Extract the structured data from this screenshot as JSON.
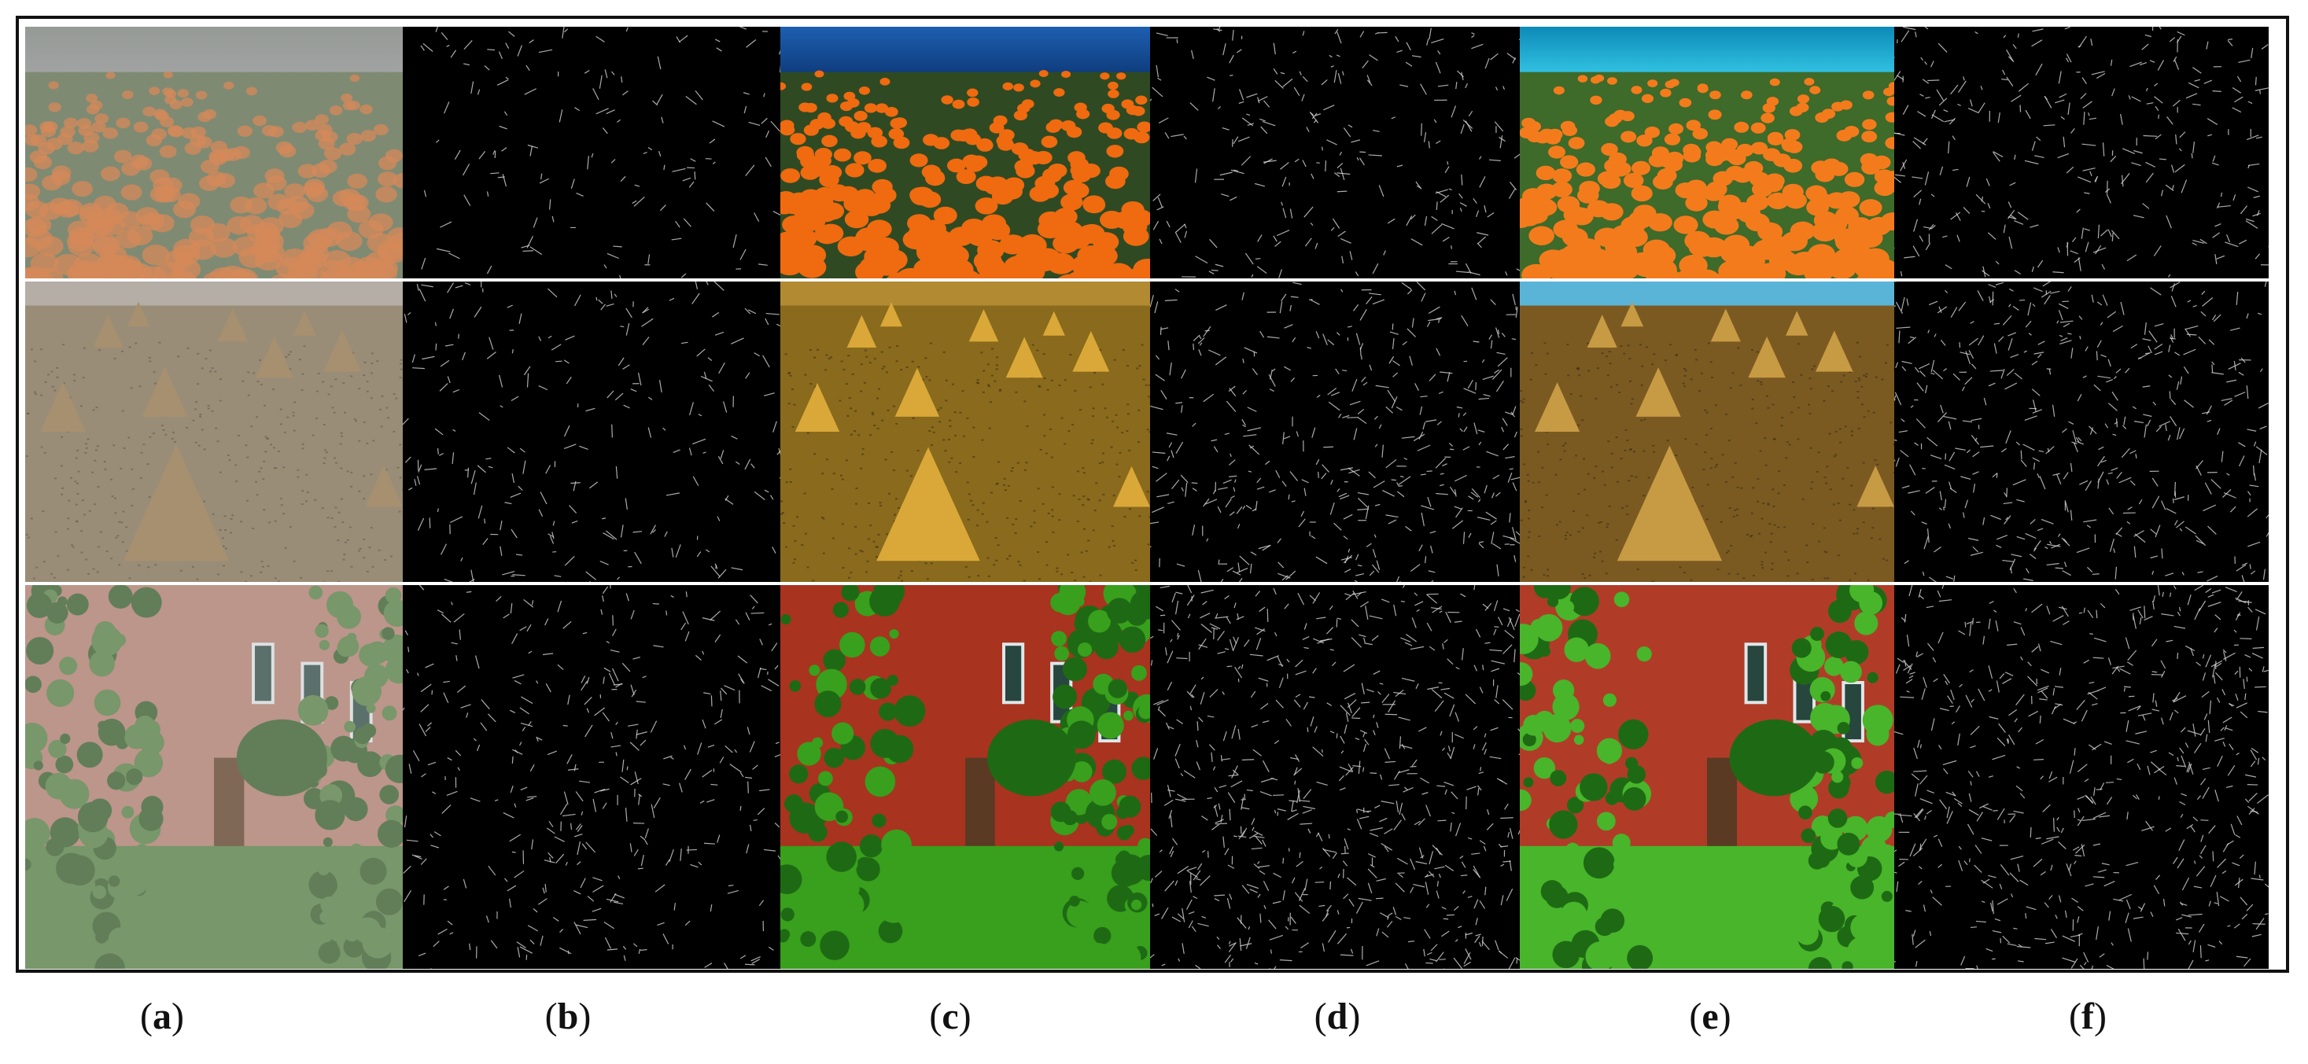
{
  "figure": {
    "captions": [
      {
        "open": "(",
        "letter": "a",
        "close": ")"
      },
      {
        "open": "(",
        "letter": "b",
        "close": ")"
      },
      {
        "open": "(",
        "letter": "c",
        "close": ")"
      },
      {
        "open": "(",
        "letter": "d",
        "close": ")"
      },
      {
        "open": "(",
        "letter": "e",
        "close": ")"
      },
      {
        "open": "(",
        "letter": "f",
        "close": ")"
      }
    ],
    "rows": [
      "pumpkin-field",
      "haystack-field",
      "brick-house-garden"
    ],
    "columns": [
      "hazy-input",
      "edges-of-hazy",
      "dehazed-result-1",
      "edges-of-result-1",
      "dehazed-result-2",
      "edges-of-result-2"
    ]
  }
}
